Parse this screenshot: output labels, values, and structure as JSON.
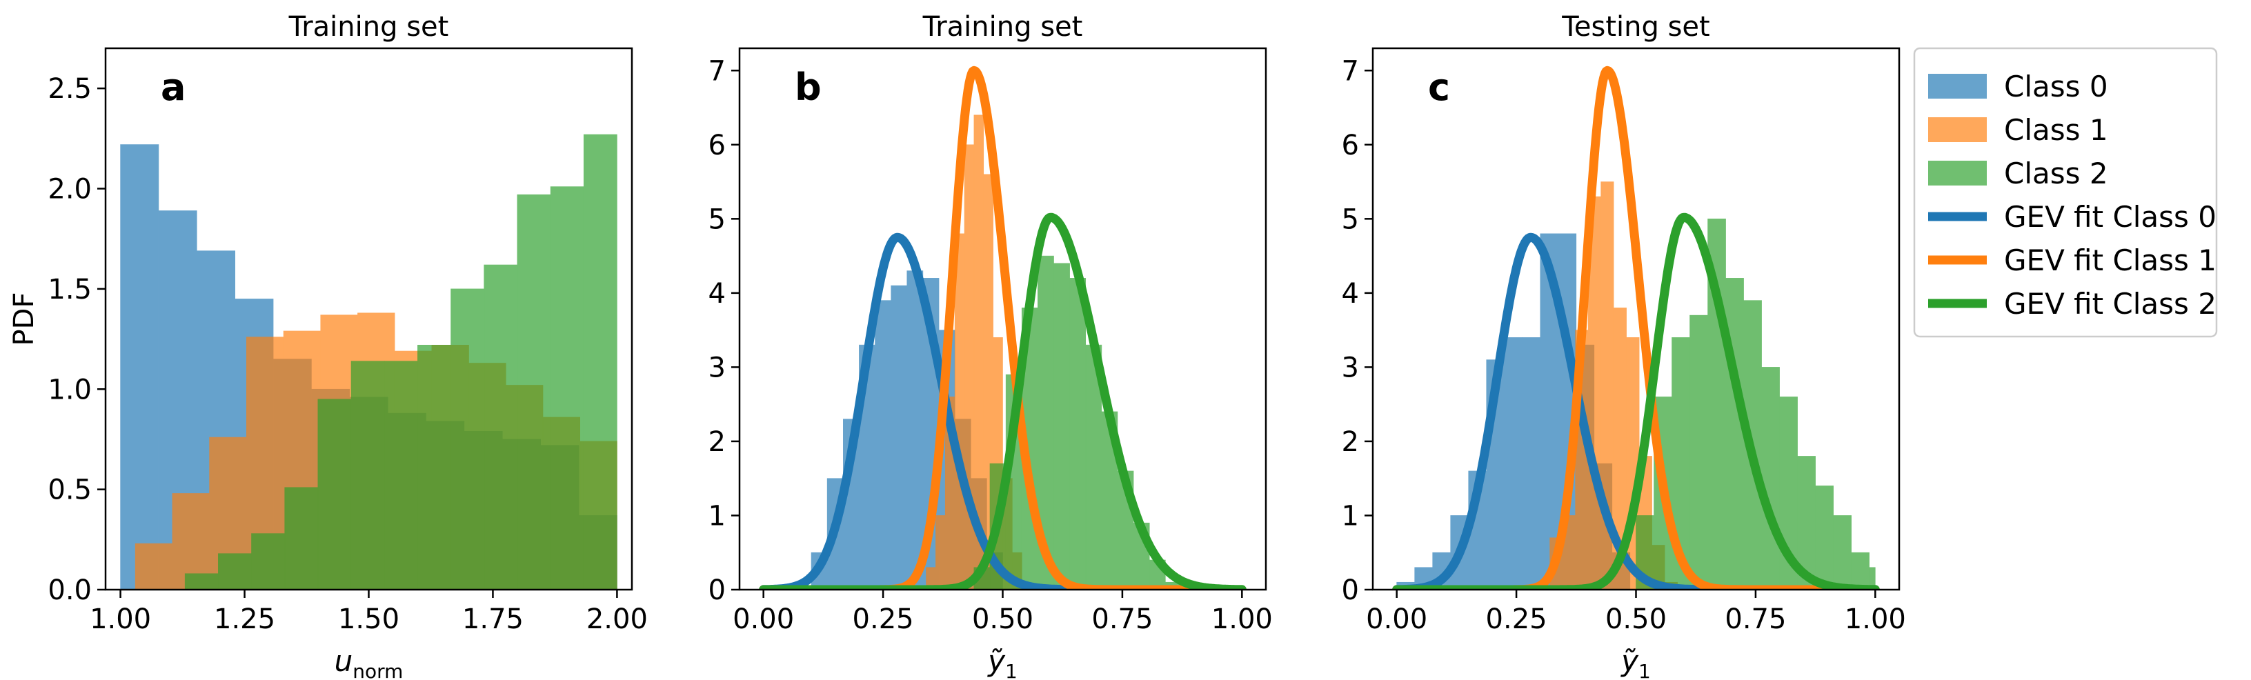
{
  "figure": {
    "colors": {
      "class0": "#1f77b4",
      "class1": "#ff7f0e",
      "class2": "#2ca02c"
    }
  },
  "legend": {
    "entries": [
      {
        "label": "Class 0",
        "kind": "patch",
        "color": "#1f77b4"
      },
      {
        "label": "Class 1",
        "kind": "patch",
        "color": "#ff7f0e"
      },
      {
        "label": "Class 2",
        "kind": "patch",
        "color": "#2ca02c"
      },
      {
        "label": "GEV fit Class 0",
        "kind": "line",
        "color": "#1f77b4"
      },
      {
        "label": "GEV fit Class 1",
        "kind": "line",
        "color": "#ff7f0e"
      },
      {
        "label": "GEV fit Class 2",
        "kind": "line",
        "color": "#2ca02c"
      }
    ],
    "position": "outside-right"
  },
  "chart_data": [
    {
      "id": "a",
      "type": "histogram",
      "title": "Training set",
      "panel_label": "a",
      "xlabel": "u_norm",
      "xlabel_main": "u",
      "xlabel_sub": "norm",
      "ylabel": "PDF",
      "xlim": [
        0.97,
        2.03
      ],
      "ylim": [
        0,
        2.7
      ],
      "xticks": [
        1.0,
        1.25,
        1.5,
        1.75,
        2.0
      ],
      "xtick_labels": [
        "1.00",
        "1.25",
        "1.50",
        "1.75",
        "2.00"
      ],
      "yticks": [
        0.0,
        0.5,
        1.0,
        1.5,
        2.0,
        2.5
      ],
      "ytick_labels": [
        "0.0",
        "0.5",
        "1.0",
        "1.5",
        "2.0",
        "2.5"
      ],
      "series": [
        {
          "name": "Class 0",
          "color": "#1f77b4",
          "bin_edges": [
            1.0,
            1.0769,
            1.1538,
            1.2308,
            1.3077,
            1.3846,
            1.4615,
            1.5385,
            1.6154,
            1.6923,
            1.7692,
            1.8462,
            1.9231,
            2.0
          ],
          "values": [
            2.22,
            1.89,
            1.69,
            1.45,
            1.15,
            1.0,
            0.96,
            0.88,
            0.84,
            0.79,
            0.75,
            0.72,
            0.37
          ]
        },
        {
          "name": "Class 1",
          "color": "#ff7f0e",
          "bin_edges": [
            1.03,
            1.1046,
            1.1792,
            1.2538,
            1.3285,
            1.4031,
            1.4777,
            1.5523,
            1.6269,
            1.7015,
            1.7762,
            1.8508,
            1.9254,
            2.0
          ],
          "values": [
            0.23,
            0.48,
            0.76,
            1.26,
            1.29,
            1.37,
            1.38,
            1.19,
            1.22,
            1.13,
            1.02,
            0.86,
            0.74
          ]
        },
        {
          "name": "Class 2",
          "color": "#2ca02c",
          "bin_edges": [
            1.13,
            1.1969,
            1.2638,
            1.3308,
            1.3977,
            1.4646,
            1.5315,
            1.5985,
            1.6654,
            1.7323,
            1.7992,
            1.8662,
            1.9331,
            2.0
          ],
          "values": [
            0.08,
            0.18,
            0.28,
            0.51,
            0.95,
            1.14,
            1.14,
            1.22,
            1.5,
            1.62,
            1.97,
            2.01,
            2.27
          ]
        }
      ]
    },
    {
      "id": "b",
      "type": "histogram",
      "title": "Training set",
      "panel_label": "b",
      "xlabel": "ỹ1",
      "xlabel_main": "ỹ",
      "xlabel_sub": "1",
      "ylabel": "",
      "xlim": [
        -0.05,
        1.05
      ],
      "ylim": [
        0,
        7.3
      ],
      "xticks": [
        0.0,
        0.25,
        0.5,
        0.75,
        1.0
      ],
      "xtick_labels": [
        "0.00",
        "0.25",
        "0.50",
        "0.75",
        "1.00"
      ],
      "yticks": [
        0,
        1,
        2,
        3,
        4,
        5,
        6,
        7
      ],
      "ytick_labels": [
        "0",
        "1",
        "2",
        "3",
        "4",
        "5",
        "6",
        "7"
      ],
      "series": [
        {
          "name": "Class 0",
          "color": "#1f77b4",
          "bin_edges": [
            0.1,
            0.1333,
            0.1667,
            0.2,
            0.2333,
            0.2667,
            0.3,
            0.3333,
            0.3667,
            0.4,
            0.4333,
            0.4667,
            0.5
          ],
          "values": [
            0.5,
            1.5,
            2.3,
            3.3,
            3.9,
            4.1,
            4.3,
            4.2,
            3.5,
            2.3,
            1.5,
            0.5
          ]
        },
        {
          "name": "Class 1",
          "color": "#ff7f0e",
          "bin_edges": [
            0.34,
            0.36,
            0.38,
            0.4,
            0.42,
            0.44,
            0.46,
            0.48,
            0.5,
            0.52,
            0.54
          ],
          "values": [
            0.3,
            1.0,
            2.6,
            4.8,
            6.0,
            6.4,
            5.6,
            3.4,
            1.5,
            0.5
          ]
        },
        {
          "name": "Class 2",
          "color": "#2ca02c",
          "bin_edges": [
            0.44,
            0.4733,
            0.5067,
            0.54,
            0.5733,
            0.6067,
            0.64,
            0.6733,
            0.7067,
            0.74,
            0.7733,
            0.8067,
            0.84,
            0.8733
          ],
          "values": [
            0.3,
            1.7,
            2.9,
            3.8,
            4.5,
            4.4,
            4.2,
            3.3,
            2.4,
            1.6,
            0.9,
            0.4,
            0.1
          ]
        }
      ],
      "fits": [
        {
          "name": "GEV fit Class 0",
          "color": "#1f77b4",
          "peak_x": 0.28,
          "peak_y": 4.75,
          "sigma_left": 0.07,
          "sigma_right": 0.09
        },
        {
          "name": "GEV fit Class 1",
          "color": "#ff7f0e",
          "peak_x": 0.44,
          "peak_y": 7.0,
          "sigma_left": 0.045,
          "sigma_right": 0.065
        },
        {
          "name": "GEV fit Class 2",
          "color": "#2ca02c",
          "peak_x": 0.6,
          "peak_y": 5.02,
          "sigma_left": 0.06,
          "sigma_right": 0.1
        }
      ]
    },
    {
      "id": "c",
      "type": "histogram",
      "title": "Testing set",
      "panel_label": "c",
      "xlabel": "ỹ1",
      "xlabel_main": "ỹ",
      "xlabel_sub": "1",
      "ylabel": "",
      "xlim": [
        -0.05,
        1.05
      ],
      "ylim": [
        0,
        7.3
      ],
      "xticks": [
        0.0,
        0.25,
        0.5,
        0.75,
        1.0
      ],
      "xtick_labels": [
        "0.00",
        "0.25",
        "0.50",
        "0.75",
        "1.00"
      ],
      "yticks": [
        0,
        1,
        2,
        3,
        4,
        5,
        6,
        7
      ],
      "ytick_labels": [
        "0",
        "1",
        "2",
        "3",
        "4",
        "5",
        "6",
        "7"
      ],
      "series": [
        {
          "name": "Class 0",
          "color": "#1f77b4",
          "bin_edges": [
            0.0,
            0.0375,
            0.075,
            0.1125,
            0.15,
            0.1875,
            0.225,
            0.2625,
            0.3,
            0.3375,
            0.375,
            0.4125,
            0.45,
            0.4875
          ],
          "values": [
            0.1,
            0.3,
            0.5,
            1.0,
            1.6,
            3.1,
            3.4,
            3.4,
            4.8,
            4.8,
            3.3,
            1.7,
            0.5
          ]
        },
        {
          "name": "Class 1",
          "color": "#ff7f0e",
          "bin_edges": [
            0.32,
            0.3467,
            0.3733,
            0.4,
            0.4267,
            0.4533,
            0.48,
            0.5067,
            0.5333,
            0.56,
            0.5867
          ],
          "values": [
            0.7,
            1.0,
            3.5,
            5.3,
            5.5,
            3.8,
            3.4,
            1.8,
            0.6,
            0.1
          ]
        },
        {
          "name": "Class 2",
          "color": "#2ca02c",
          "bin_edges": [
            0.5,
            0.5375,
            0.575,
            0.6125,
            0.65,
            0.6875,
            0.725,
            0.7625,
            0.8,
            0.8375,
            0.875,
            0.9125,
            0.95,
            0.9875,
            1.0
          ],
          "values": [
            1.0,
            2.6,
            3.4,
            3.7,
            5.0,
            4.2,
            3.9,
            3.0,
            2.6,
            1.8,
            1.4,
            1.0,
            0.5,
            0.3
          ]
        }
      ],
      "fits": [
        {
          "name": "GEV fit Class 0",
          "color": "#1f77b4",
          "peak_x": 0.28,
          "peak_y": 4.75,
          "sigma_left": 0.07,
          "sigma_right": 0.09
        },
        {
          "name": "GEV fit Class 1",
          "color": "#ff7f0e",
          "peak_x": 0.44,
          "peak_y": 7.0,
          "sigma_left": 0.045,
          "sigma_right": 0.065
        },
        {
          "name": "GEV fit Class 2",
          "color": "#2ca02c",
          "peak_x": 0.6,
          "peak_y": 5.02,
          "sigma_left": 0.06,
          "sigma_right": 0.1
        }
      ]
    }
  ]
}
